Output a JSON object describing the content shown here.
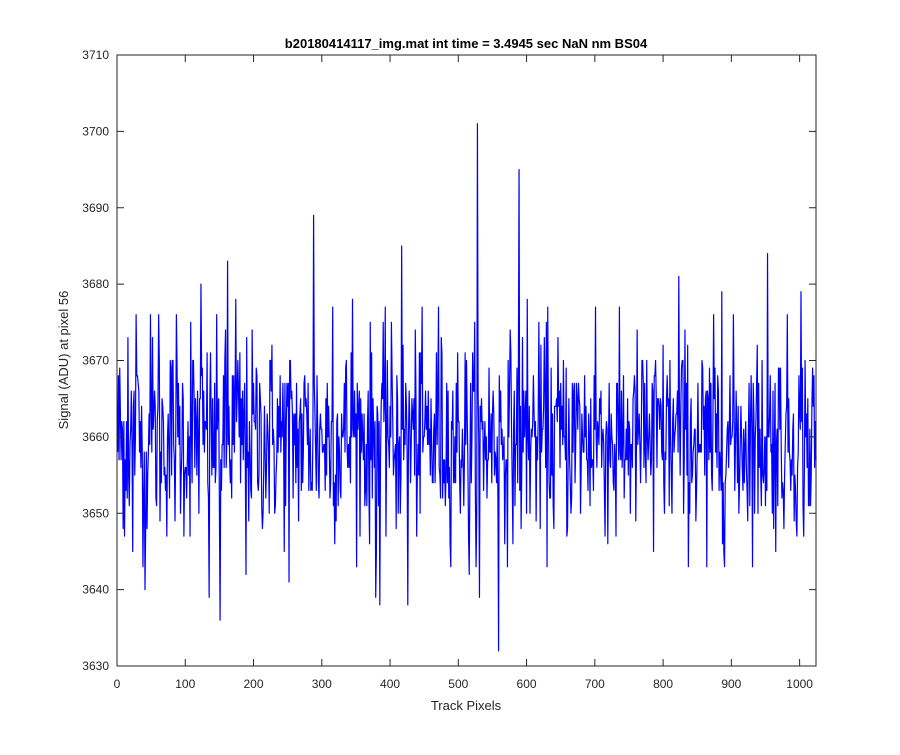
{
  "chart_data": {
    "type": "line",
    "title": "b20180414117_img.mat int time = 3.4945 sec  NaN nm BS04",
    "xlabel": "Track Pixels",
    "ylabel": "Signal (ADU) at pixel 56",
    "xlim": [
      0,
      1024
    ],
    "ylim": [
      3630,
      3710
    ],
    "xticks": [
      0,
      100,
      200,
      300,
      400,
      500,
      600,
      700,
      800,
      900,
      1000
    ],
    "yticks": [
      3630,
      3640,
      3650,
      3660,
      3670,
      3680,
      3690,
      3700,
      3710
    ],
    "grid": false,
    "legend": "none",
    "series": [
      {
        "color": "#0000ff",
        "n_points": 1024,
        "baseline": 3660,
        "notable_points": [
          {
            "x": 1,
            "y": 3668
          },
          {
            "x": 8,
            "y": 3648
          },
          {
            "x": 15,
            "y": 3673
          },
          {
            "x": 22,
            "y": 3645
          },
          {
            "x": 27,
            "y": 3676
          },
          {
            "x": 40,
            "y": 3640
          },
          {
            "x": 48,
            "y": 3676
          },
          {
            "x": 60,
            "y": 3676
          },
          {
            "x": 86,
            "y": 3676
          },
          {
            "x": 107,
            "y": 3675
          },
          {
            "x": 122,
            "y": 3680
          },
          {
            "x": 134,
            "y": 3639
          },
          {
            "x": 150,
            "y": 3636
          },
          {
            "x": 161,
            "y": 3683
          },
          {
            "x": 173,
            "y": 3678
          },
          {
            "x": 188,
            "y": 3642
          },
          {
            "x": 223,
            "y": 3670
          },
          {
            "x": 251,
            "y": 3641
          },
          {
            "x": 287,
            "y": 3689
          },
          {
            "x": 315,
            "y": 3677
          },
          {
            "x": 344,
            "y": 3678
          },
          {
            "x": 378,
            "y": 3639
          },
          {
            "x": 384,
            "y": 3638
          },
          {
            "x": 395,
            "y": 3670
          },
          {
            "x": 416,
            "y": 3685
          },
          {
            "x": 425,
            "y": 3638
          },
          {
            "x": 470,
            "y": 3677
          },
          {
            "x": 515,
            "y": 3642
          },
          {
            "x": 527,
            "y": 3701
          },
          {
            "x": 530,
            "y": 3639
          },
          {
            "x": 558,
            "y": 3632
          },
          {
            "x": 588,
            "y": 3695
          },
          {
            "x": 600,
            "y": 3678
          },
          {
            "x": 630,
            "y": 3677
          },
          {
            "x": 700,
            "y": 3677
          },
          {
            "x": 730,
            "y": 3647
          },
          {
            "x": 785,
            "y": 3645
          },
          {
            "x": 822,
            "y": 3681
          },
          {
            "x": 863,
            "y": 3643
          },
          {
            "x": 885,
            "y": 3679
          },
          {
            "x": 952,
            "y": 3684
          },
          {
            "x": 1001,
            "y": 3679
          },
          {
            "x": 1015,
            "y": 3651
          }
        ]
      }
    ]
  }
}
